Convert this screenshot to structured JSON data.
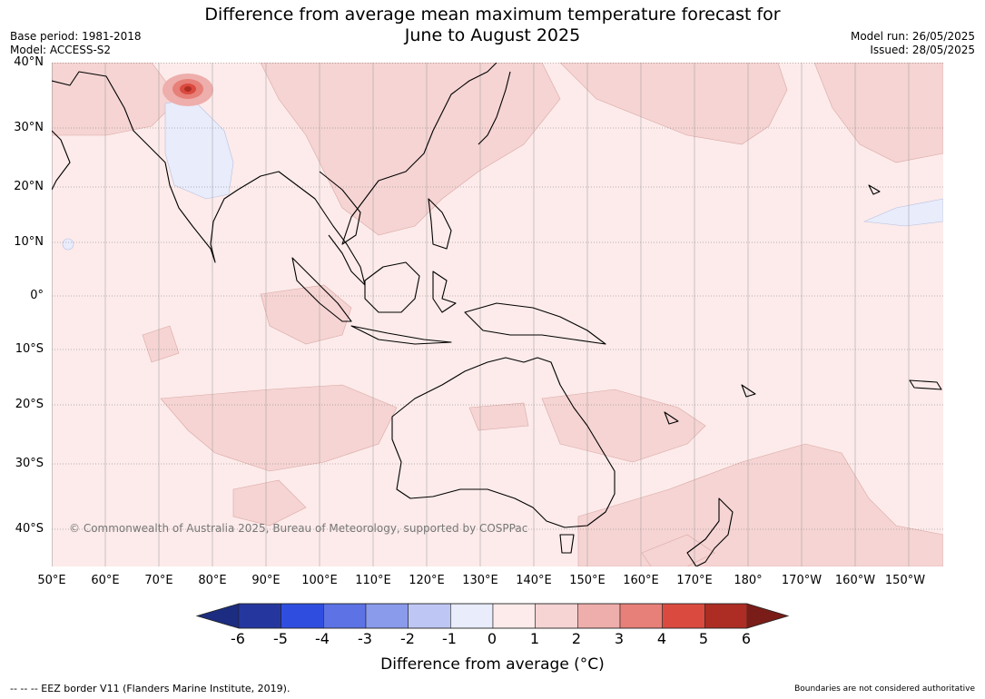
{
  "title_line1": "Difference from average mean maximum temperature forecast for",
  "title_line2": "June to August 2025",
  "base_period": "Base period: 1981-2018",
  "model": "Model: ACCESS-S2",
  "model_run": "Model run: 26/05/2025",
  "issued": "Issued: 28/05/2025",
  "copyright": "© Commonwealth of Australia 2025, Bureau of Meteorology, supported by COSPPac",
  "lat_labels": [
    "40°N",
    "30°N",
    "20°N",
    "10°N",
    "0°",
    "10°S",
    "20°S",
    "30°S",
    "40°S"
  ],
  "lon_labels": [
    "50°E",
    "60°E",
    "70°E",
    "80°E",
    "90°E",
    "100°E",
    "110°E",
    "120°E",
    "130°E",
    "140°E",
    "150°E",
    "160°E",
    "170°E",
    "180°",
    "170°W",
    "160°W",
    "150°W"
  ],
  "colorbar": {
    "ticks": [
      "-6",
      "-5",
      "-4",
      "-3",
      "-2",
      "-1",
      "0",
      "1",
      "2",
      "3",
      "4",
      "5",
      "6"
    ],
    "colors": [
      "#25379f",
      "#2f4ee0",
      "#5c72e5",
      "#8a9bec",
      "#bec7f4",
      "#e8ecfb",
      "#fcebea",
      "#f5d4d3",
      "#eeaeab",
      "#e68078",
      "#db4a3f",
      "#ad2d24"
    ],
    "low_extend_color": "#1c2c80",
    "high_extend_color": "#7a1d18",
    "title": "Difference from average (°C)"
  },
  "footer_left": "--  --  -- EEZ border V11 (Flanders Marine Institute, 2019).",
  "footer_right": "Boundaries are not considered authoritative"
}
